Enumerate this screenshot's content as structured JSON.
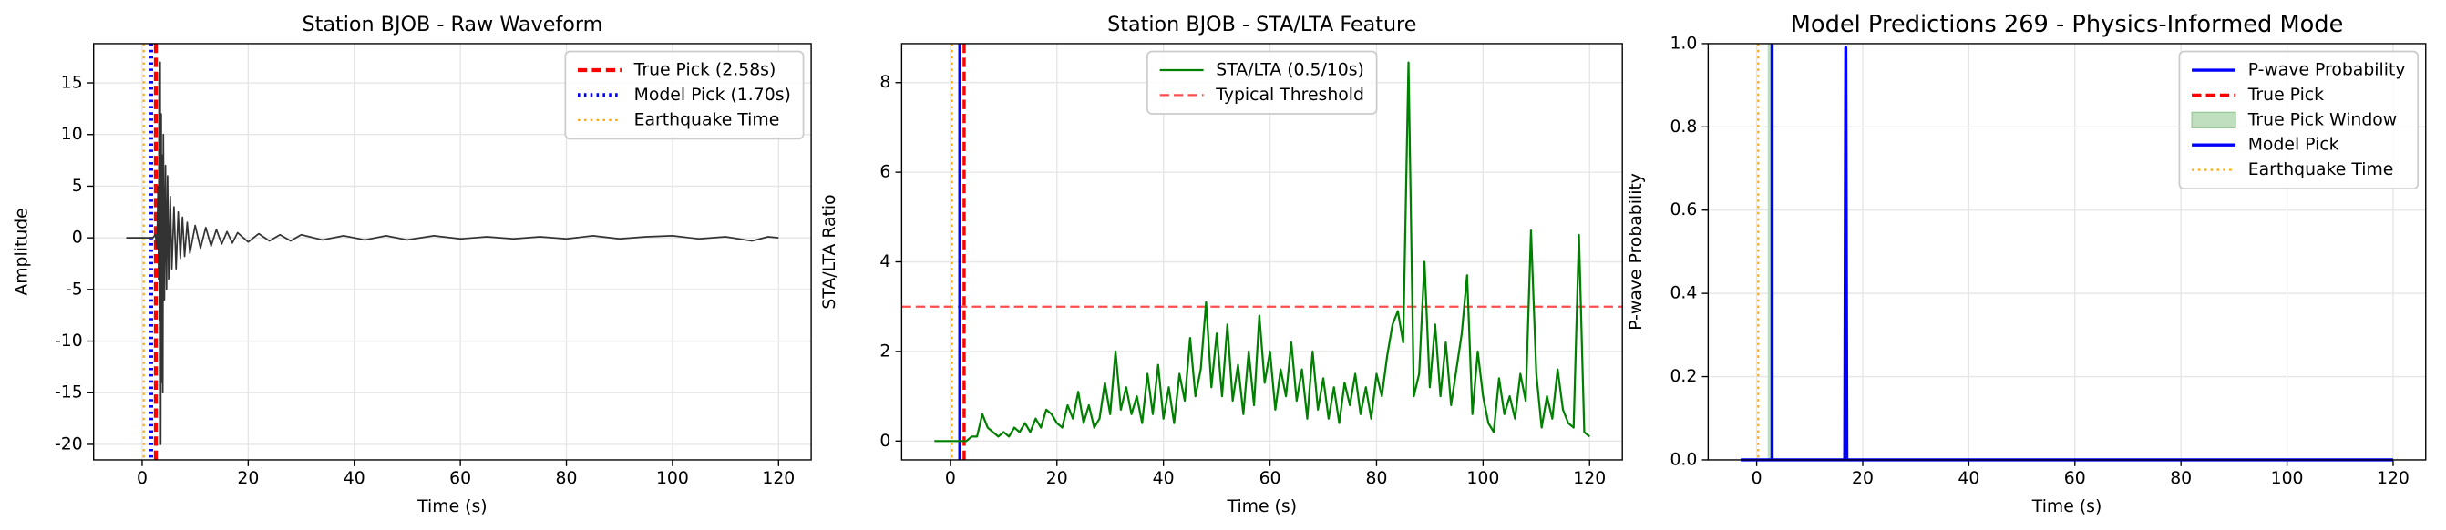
{
  "chart_data": [
    {
      "type": "line",
      "title": "Station BJOB - Raw Waveform",
      "xlabel": "Time (s)",
      "ylabel": "Amplitude",
      "xlim": [
        -9.15,
        126.15
      ],
      "ylim": [
        -21.5,
        18.8
      ],
      "xticks": [
        0,
        20,
        40,
        60,
        80,
        100,
        120
      ],
      "yticks": [
        -20,
        -15,
        -10,
        -5,
        0,
        5,
        10,
        15
      ],
      "grid": true,
      "legend": "upper right",
      "series": [
        {
          "color": "#333333",
          "width": 1,
          "x": [
            -3,
            0,
            2,
            2.5,
            2.8,
            3.0,
            3.1,
            3.2,
            3.3,
            3.4,
            3.5,
            3.6,
            3.7,
            3.8,
            3.9,
            4.0,
            4.2,
            4.4,
            4.6,
            4.8,
            5.0,
            5.3,
            5.6,
            6.0,
            6.4,
            6.8,
            7.2,
            7.6,
            8,
            8.5,
            9,
            10,
            11,
            12,
            13,
            14,
            15,
            16,
            17,
            18,
            20,
            22,
            24,
            26,
            28,
            30,
            34,
            38,
            42,
            46,
            50,
            55,
            60,
            65,
            70,
            75,
            80,
            85,
            90,
            95,
            100,
            105,
            110,
            115,
            118,
            120
          ],
          "values": [
            0,
            0,
            0,
            0.3,
            -1,
            5,
            -4,
            16,
            -8,
            17,
            -20,
            12,
            -14,
            8,
            -15,
            10,
            -6,
            7,
            -5,
            6,
            -4,
            4,
            -3,
            3,
            -3,
            2.5,
            -2,
            2,
            -1.8,
            1.5,
            -1.5,
            1.2,
            -1,
            1,
            -0.8,
            0.8,
            -0.6,
            0.6,
            -0.5,
            0.5,
            -0.4,
            0.4,
            -0.3,
            0.3,
            -0.3,
            0.3,
            -0.2,
            0.2,
            -0.2,
            0.2,
            -0.2,
            0.2,
            -0.1,
            0.1,
            -0.1,
            0.1,
            -0.1,
            0.2,
            -0.1,
            0.1,
            0.2,
            -0.1,
            0.1,
            -0.3,
            0.1,
            0
          ]
        }
      ],
      "overlays": [
        {
          "kind": "vline",
          "name": "True Pick (2.58s)",
          "x": 2.58,
          "color": "#ff0000",
          "style": "dashed",
          "width": 2.5
        },
        {
          "kind": "vline",
          "name": "Model Pick (1.70s)",
          "x": 1.7,
          "color": "#0000ff",
          "style": "dotted",
          "width": 2.5
        },
        {
          "kind": "vline",
          "name": "Earthquake Time",
          "x": 0.3,
          "color": "#ffa500",
          "style": "dotted",
          "width": 1.2
        }
      ]
    },
    {
      "type": "line",
      "title": "Station BJOB - STA/LTA Feature",
      "xlabel": "Time (s)",
      "ylabel": "STA/LTA Ratio",
      "xlim": [
        -9.15,
        126.15
      ],
      "ylim": [
        -0.42,
        8.87
      ],
      "xticks": [
        0,
        20,
        40,
        60,
        80,
        100,
        120
      ],
      "yticks": [
        0,
        2,
        4,
        6,
        8
      ],
      "grid": true,
      "legend": "upper center",
      "series": [
        {
          "name": "STA/LTA (0.5/10s)",
          "color": "#008000",
          "width": 1.3,
          "x": [
            -3,
            0,
            2,
            3,
            4,
            5,
            6,
            7,
            8,
            9,
            10,
            11,
            12,
            13,
            14,
            15,
            16,
            17,
            18,
            19,
            20,
            21,
            22,
            23,
            24,
            25,
            26,
            27,
            28,
            29,
            30,
            31,
            32,
            33,
            34,
            35,
            36,
            37,
            38,
            39,
            40,
            41,
            42,
            43,
            44,
            45,
            46,
            47,
            48,
            49,
            50,
            51,
            52,
            53,
            54,
            55,
            56,
            57,
            58,
            59,
            60,
            61,
            62,
            63,
            64,
            65,
            66,
            67,
            68,
            69,
            70,
            71,
            72,
            73,
            74,
            75,
            76,
            77,
            78,
            79,
            80,
            81,
            82,
            83,
            84,
            85,
            86,
            87,
            88,
            89,
            90,
            91,
            92,
            93,
            94,
            95,
            96,
            97,
            98,
            99,
            100,
            101,
            102,
            103,
            104,
            105,
            106,
            107,
            108,
            109,
            110,
            111,
            112,
            113,
            114,
            115,
            116,
            117,
            118,
            119,
            120
          ],
          "values": [
            0,
            0,
            0,
            0,
            0.1,
            0.1,
            0.6,
            0.3,
            0.2,
            0.1,
            0.2,
            0.1,
            0.3,
            0.2,
            0.4,
            0.2,
            0.5,
            0.3,
            0.7,
            0.6,
            0.4,
            0.3,
            0.8,
            0.5,
            1.1,
            0.4,
            0.8,
            0.3,
            0.5,
            1.3,
            0.6,
            2.0,
            0.7,
            1.2,
            0.6,
            1.0,
            0.4,
            1.5,
            0.6,
            1.7,
            0.5,
            1.2,
            0.4,
            1.5,
            0.9,
            2.3,
            1.0,
            1.6,
            3.1,
            1.2,
            2.4,
            1.0,
            2.6,
            0.9,
            1.7,
            0.6,
            2.0,
            0.8,
            2.8,
            1.3,
            2.0,
            0.7,
            1.6,
            1.0,
            2.2,
            0.9,
            1.6,
            0.5,
            2.0,
            0.7,
            1.4,
            0.5,
            1.2,
            0.4,
            1.3,
            0.8,
            1.5,
            0.6,
            1.2,
            0.5,
            1.5,
            1.0,
            1.9,
            2.6,
            2.9,
            2.2,
            8.45,
            1.0,
            1.5,
            4.0,
            1.2,
            2.6,
            1.0,
            2.2,
            0.8,
            1.6,
            2.4,
            3.7,
            0.6,
            2.0,
            1.0,
            0.4,
            0.2,
            1.4,
            0.6,
            1.0,
            0.5,
            1.5,
            0.9,
            4.7,
            1.5,
            0.3,
            1.0,
            0.5,
            1.6,
            0.7,
            0.4,
            0.3,
            4.6,
            0.2,
            0.1
          ]
        }
      ],
      "overlays": [
        {
          "kind": "hline",
          "name": "Typical Threshold",
          "y": 3,
          "color": "#ff4d4d",
          "style": "dashed",
          "width": 1.3
        },
        {
          "kind": "vline",
          "x": 2.58,
          "color": "#ff0000",
          "style": "dashed",
          "width": 2
        },
        {
          "kind": "vline",
          "x": 1.7,
          "color": "#0000ff",
          "style": "solid",
          "width": 1.5
        },
        {
          "kind": "vline",
          "x": 0.3,
          "color": "#ffa500",
          "style": "dotted",
          "width": 1.2
        }
      ]
    },
    {
      "type": "line",
      "title": "Model Predictions 269 - Physics-Informed Mode",
      "xlabel": "Time (s)",
      "ylabel": "P-wave Probability",
      "xlim": [
        -9.15,
        126.15
      ],
      "ylim": [
        0,
        1
      ],
      "xticks": [
        0,
        20,
        40,
        60,
        80,
        100,
        120
      ],
      "yticks": [
        {
          "value": 0,
          "label": "0.0"
        },
        0.2,
        0.4,
        0.6,
        0.8,
        {
          "value": 1,
          "label": "1.0"
        }
      ],
      "grid": true,
      "legend": "upper right",
      "series": [
        {
          "name": "P-wave Probability",
          "color": "#0000ff",
          "width": 2,
          "x": [
            -3,
            16.6,
            16.8,
            17,
            120
          ],
          "values": [
            0,
            0,
            0.99,
            0,
            0
          ]
        }
      ],
      "overlays": [
        {
          "kind": "vline",
          "name": "True Pick",
          "x": 2.58,
          "color": "#ff0000",
          "style": "dashed",
          "width": 2
        },
        {
          "kind": "span",
          "name": "True Pick Window",
          "x": [
            2.08,
            3.08
          ],
          "color": "#bfdfbf"
        },
        {
          "kind": "vline",
          "name": "Model Pick",
          "x": 2.9,
          "color": "#0000ff",
          "style": "solid",
          "width": 2
        },
        {
          "kind": "vline",
          "name": "Earthquake Time",
          "x": 0.3,
          "color": "#ffa500",
          "style": "dotted",
          "width": 1.2
        }
      ]
    }
  ]
}
